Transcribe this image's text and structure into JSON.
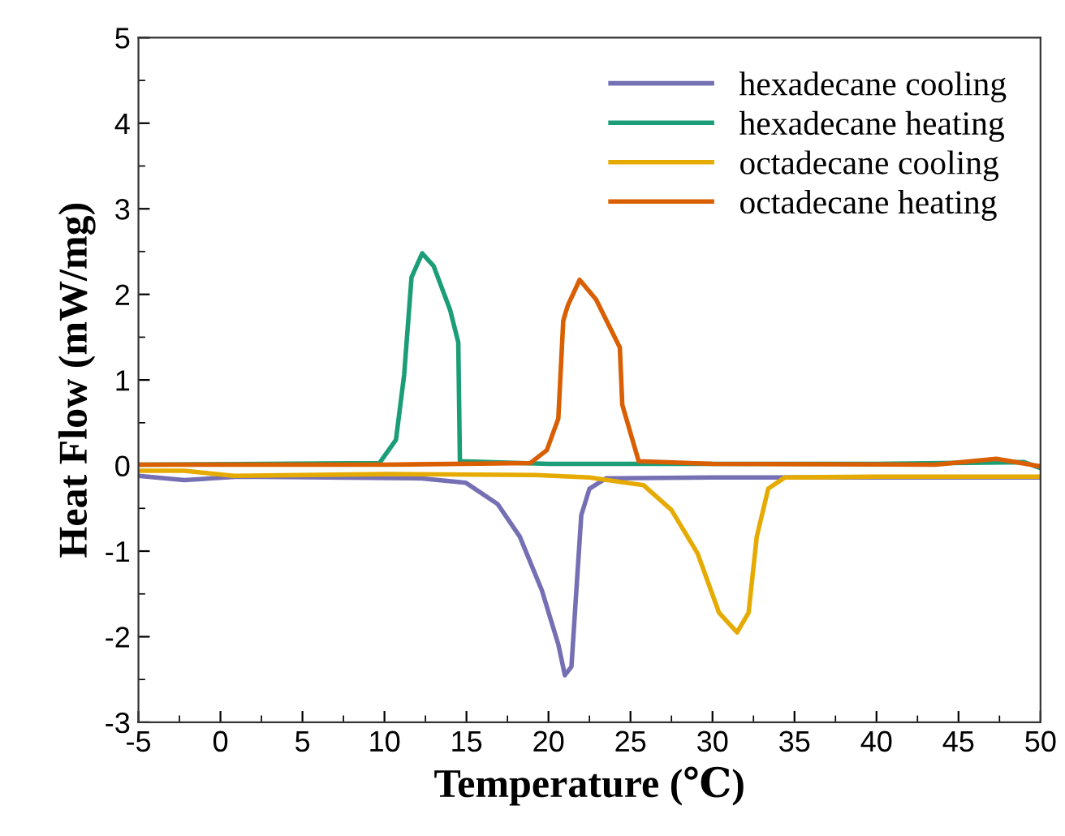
{
  "chart_data": {
    "type": "line",
    "xlabel": "Temperature (℃)",
    "ylabel": "Heat Flow (mW/mg)",
    "xlim": [
      -5,
      50
    ],
    "ylim": [
      -3,
      5
    ],
    "xticks": [
      -5,
      0,
      5,
      10,
      15,
      20,
      25,
      30,
      35,
      40,
      45,
      50
    ],
    "yticks": [
      -3,
      -2,
      -1,
      0,
      1,
      2,
      3,
      4,
      5
    ],
    "legend": "top right",
    "grid": false,
    "marker": "none",
    "line_style": "solid",
    "series": [
      {
        "name": "hexadecane cooling",
        "color": "#7570b3",
        "x": [
          -5,
          -2.2,
          1.1,
          12.3,
          14.95,
          16.9,
          18.25,
          19.6,
          20.6,
          21.0,
          21.4,
          21.7,
          22.0,
          22.5,
          23.5,
          30,
          40,
          50
        ],
        "values": [
          -0.12,
          -0.17,
          -0.13,
          -0.15,
          -0.2,
          -0.45,
          -0.83,
          -1.46,
          -2.09,
          -2.45,
          -2.35,
          -1.46,
          -0.58,
          -0.27,
          -0.15,
          -0.14,
          -0.14,
          -0.14
        ]
      },
      {
        "name": "hexadecane heating",
        "color": "#1b9e77",
        "x": [
          -5,
          9.7,
          10.7,
          11.2,
          11.65,
          12.3,
          13.0,
          14.0,
          14.5,
          14.6,
          20,
          40,
          49,
          50
        ],
        "values": [
          0.01,
          0.03,
          0.3,
          1.06,
          2.2,
          2.48,
          2.33,
          1.82,
          1.44,
          0.05,
          0.02,
          0.02,
          0.04,
          -0.03
        ]
      },
      {
        "name": "octadecane cooling",
        "color": "#e6ab02",
        "x": [
          -5,
          -2.2,
          0.8,
          10,
          19.2,
          22.5,
          25.8,
          27.5,
          29.1,
          30.4,
          31.5,
          32.2,
          32.7,
          33.4,
          34.4,
          40,
          50
        ],
        "values": [
          -0.06,
          -0.06,
          -0.12,
          -0.1,
          -0.11,
          -0.14,
          -0.23,
          -0.52,
          -1.03,
          -1.72,
          -1.95,
          -1.72,
          -0.83,
          -0.27,
          -0.14,
          -0.13,
          -0.13
        ]
      },
      {
        "name": "octadecane heating",
        "color": "#d95f02",
        "x": [
          -5,
          10,
          18.9,
          19.9,
          20.6,
          20.9,
          21.05,
          21.2,
          21.9,
          22.9,
          24.35,
          24.5,
          25.5,
          30,
          43.6,
          47.3,
          50
        ],
        "values": [
          0.01,
          0.01,
          0.03,
          0.18,
          0.55,
          1.69,
          1.79,
          1.88,
          2.17,
          1.94,
          1.38,
          0.71,
          0.05,
          0.02,
          0.01,
          0.08,
          -0.01
        ]
      }
    ]
  }
}
